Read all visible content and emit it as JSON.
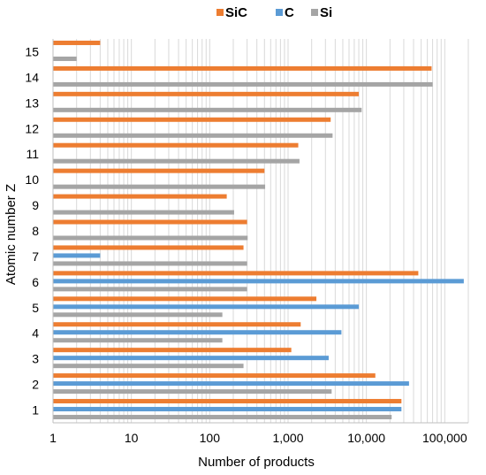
{
  "chart_data": {
    "type": "bar",
    "orientation": "horizontal",
    "xscale": "log",
    "xlim": [
      1,
      200000
    ],
    "x_ticks": [
      1,
      10,
      100,
      1000,
      10000,
      100000
    ],
    "x_tick_labels": [
      "1",
      "10",
      "100",
      "1,000",
      "10,000",
      "100,000"
    ],
    "xlabel": "Number of products",
    "ylabel": "Atomic number Z",
    "categories": [
      "1",
      "2",
      "3",
      "4",
      "5",
      "6",
      "7",
      "8",
      "9",
      "10",
      "11",
      "12",
      "13",
      "14",
      "15"
    ],
    "series": [
      {
        "name": "SiC",
        "color": "#ED7D31",
        "values": [
          28000,
          13000,
          1100,
          1450,
          2300,
          46000,
          270,
          300,
          165,
          500,
          1350,
          3500,
          8000,
          68000,
          4
        ]
      },
      {
        "name": "C",
        "color": "#5B9BD5",
        "values": [
          28000,
          35000,
          3300,
          4800,
          8000,
          175000,
          4,
          null,
          null,
          null,
          null,
          null,
          null,
          null,
          null
        ]
      },
      {
        "name": "Si",
        "color": "#A5A5A5",
        "values": [
          21000,
          3600,
          270,
          145,
          145,
          300,
          300,
          305,
          205,
          510,
          1400,
          3700,
          8700,
          70000,
          2
        ]
      }
    ],
    "grid": "vertical-major-minor",
    "legend_position": "top"
  }
}
